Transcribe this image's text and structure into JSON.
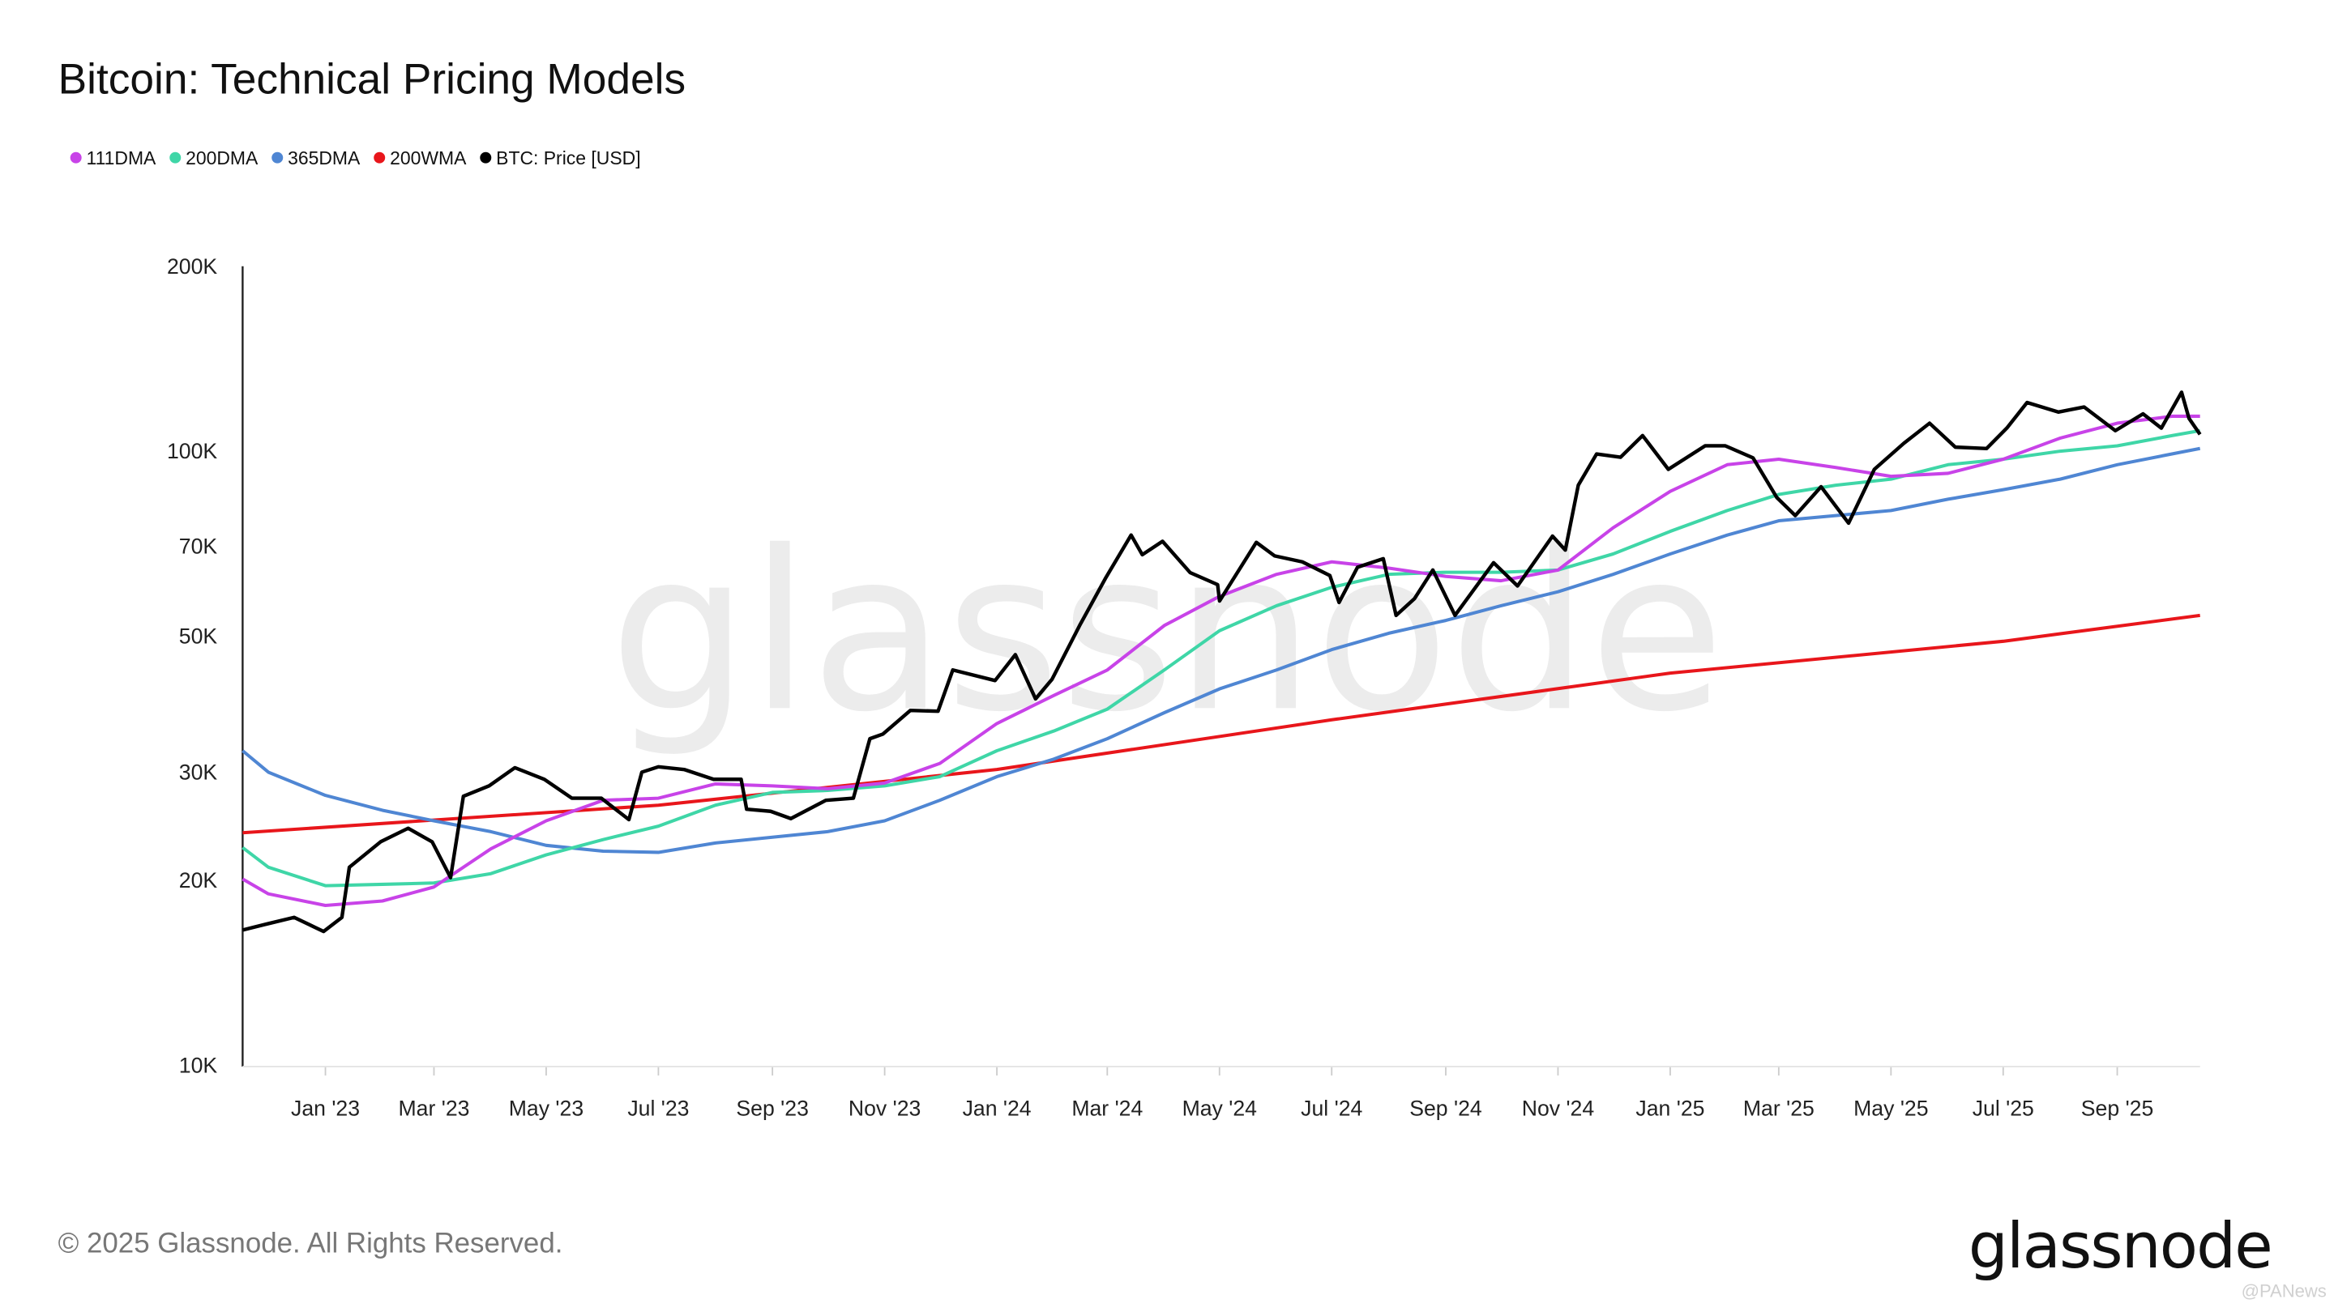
{
  "chart_data": {
    "type": "line",
    "title": "Bitcoin: Technical Pricing Models",
    "xlabel": "",
    "ylabel": "",
    "y_scale": "log",
    "ylim": [
      10000,
      200000
    ],
    "xlim": [
      "2022-11-17",
      "2025-10-16"
    ],
    "grid": false,
    "legend_placement": "top-left",
    "y_ticks": [
      {
        "value": 10000,
        "label": "10K"
      },
      {
        "value": 20000,
        "label": "20K"
      },
      {
        "value": 30000,
        "label": "30K"
      },
      {
        "value": 50000,
        "label": "50K"
      },
      {
        "value": 70000,
        "label": "70K"
      },
      {
        "value": 100000,
        "label": "100K"
      },
      {
        "value": 200000,
        "label": "200K"
      }
    ],
    "x_ticks": [
      {
        "date": "2023-01-01",
        "label": "Jan '23"
      },
      {
        "date": "2023-03-01",
        "label": "Mar '23"
      },
      {
        "date": "2023-05-01",
        "label": "May '23"
      },
      {
        "date": "2023-07-01",
        "label": "Jul '23"
      },
      {
        "date": "2023-09-01",
        "label": "Sep '23"
      },
      {
        "date": "2023-11-01",
        "label": "Nov '23"
      },
      {
        "date": "2024-01-01",
        "label": "Jan '24"
      },
      {
        "date": "2024-03-01",
        "label": "Mar '24"
      },
      {
        "date": "2024-05-01",
        "label": "May '24"
      },
      {
        "date": "2024-07-01",
        "label": "Jul '24"
      },
      {
        "date": "2024-09-01",
        "label": "Sep '24"
      },
      {
        "date": "2024-11-01",
        "label": "Nov '24"
      },
      {
        "date": "2025-01-01",
        "label": "Jan '25"
      },
      {
        "date": "2025-03-01",
        "label": "Mar '25"
      },
      {
        "date": "2025-05-01",
        "label": "May '25"
      },
      {
        "date": "2025-07-01",
        "label": "Jul '25"
      },
      {
        "date": "2025-09-01",
        "label": "Sep '25"
      }
    ],
    "ma_dates": [
      "2022-11-17",
      "2022-12-01",
      "2023-01-01",
      "2023-02-01",
      "2023-03-01",
      "2023-04-01",
      "2023-05-01",
      "2023-06-01",
      "2023-07-01",
      "2023-08-01",
      "2023-09-01",
      "2023-10-01",
      "2023-11-01",
      "2023-12-01",
      "2024-01-01",
      "2024-02-01",
      "2024-03-01",
      "2024-04-01",
      "2024-05-01",
      "2024-06-01",
      "2024-07-01",
      "2024-08-01",
      "2024-09-01",
      "2024-10-01",
      "2024-11-01",
      "2024-12-01",
      "2025-01-01",
      "2025-02-01",
      "2025-03-01",
      "2025-04-01",
      "2025-05-01",
      "2025-06-01",
      "2025-07-01",
      "2025-08-01",
      "2025-09-01",
      "2025-10-01",
      "2025-10-16"
    ],
    "series": [
      {
        "name": "200WMA",
        "color": "#e8161b",
        "x": [
          "2022-11-17",
          "2023-07-01",
          "2024-01-01",
          "2024-07-01",
          "2025-01-01",
          "2025-07-01",
          "2025-10-16"
        ],
        "values": [
          23900,
          26500,
          30300,
          36500,
          43500,
          49000,
          54000
        ]
      },
      {
        "name": "365DMA",
        "color": "#4f86d3",
        "values": [
          32500,
          30000,
          27500,
          26000,
          25000,
          24000,
          22800,
          22300,
          22200,
          23000,
          23500,
          24000,
          25000,
          27000,
          29500,
          31500,
          34000,
          37500,
          41000,
          44000,
          47500,
          50500,
          53000,
          56000,
          59000,
          63000,
          68000,
          73000,
          77000,
          78500,
          80000,
          83500,
          86500,
          90000,
          95000,
          99000,
          101000
        ]
      },
      {
        "name": "200DMA",
        "color": "#3fd6a7",
        "values": [
          22600,
          21000,
          19600,
          19700,
          19800,
          20500,
          22000,
          23300,
          24500,
          26500,
          27800,
          28000,
          28500,
          29500,
          32500,
          35000,
          38000,
          44000,
          51000,
          56000,
          60000,
          63000,
          63500,
          63500,
          64000,
          68000,
          74000,
          80000,
          85000,
          88000,
          90000,
          95000,
          97000,
          100000,
          102000,
          106000,
          108000
        ]
      },
      {
        "name": "111DMA",
        "color": "#c843e8",
        "values": [
          20100,
          19000,
          18200,
          18500,
          19500,
          22500,
          25000,
          27000,
          27200,
          28700,
          28500,
          28200,
          28800,
          31000,
          36000,
          40000,
          44000,
          52000,
          58000,
          63000,
          66000,
          64500,
          62500,
          61500,
          64000,
          75000,
          86000,
          95000,
          97000,
          94000,
          91000,
          92000,
          97000,
          105000,
          111000,
          114000,
          114000
        ]
      },
      {
        "name": "BTC: Price [USD]",
        "color": "#000000",
        "x": [
          "2022-11-17",
          "2022-12-01",
          "2022-12-15",
          "2022-12-31",
          "2023-01-10",
          "2023-01-14",
          "2023-01-31",
          "2023-02-15",
          "2023-02-28",
          "2023-03-10",
          "2023-03-17",
          "2023-03-31",
          "2023-04-14",
          "2023-04-30",
          "2023-05-15",
          "2023-05-31",
          "2023-06-15",
          "2023-06-22",
          "2023-07-01",
          "2023-07-15",
          "2023-07-31",
          "2023-08-15",
          "2023-08-18",
          "2023-08-31",
          "2023-09-11",
          "2023-09-30",
          "2023-10-15",
          "2023-10-24",
          "2023-10-31",
          "2023-11-15",
          "2023-11-30",
          "2023-12-08",
          "2023-12-31",
          "2024-01-11",
          "2024-01-22",
          "2024-01-31",
          "2024-02-15",
          "2024-02-29",
          "2024-03-14",
          "2024-03-20",
          "2024-03-31",
          "2024-04-15",
          "2024-04-30",
          "2024-05-01",
          "2024-05-21",
          "2024-05-31",
          "2024-06-15",
          "2024-06-30",
          "2024-07-05",
          "2024-07-15",
          "2024-07-29",
          "2024-08-05",
          "2024-08-15",
          "2024-08-25",
          "2024-09-06",
          "2024-09-27",
          "2024-10-10",
          "2024-10-29",
          "2024-11-05",
          "2024-11-12",
          "2024-11-22",
          "2024-12-05",
          "2024-12-17",
          "2024-12-31",
          "2025-01-20",
          "2025-01-31",
          "2025-02-15",
          "2025-02-28",
          "2025-03-10",
          "2025-03-24",
          "2025-04-08",
          "2025-04-22",
          "2025-05-08",
          "2025-05-22",
          "2025-06-05",
          "2025-06-22",
          "2025-07-03",
          "2025-07-14",
          "2025-07-31",
          "2025-08-14",
          "2025-08-31",
          "2025-09-15",
          "2025-09-25",
          "2025-10-06",
          "2025-10-10",
          "2025-10-16"
        ],
        "values": [
          16600,
          17000,
          17400,
          16500,
          17400,
          21000,
          23100,
          24300,
          23100,
          20200,
          27400,
          28500,
          30500,
          29200,
          27200,
          27200,
          25100,
          30000,
          30600,
          30300,
          29200,
          29200,
          26100,
          25900,
          25200,
          27000,
          27200,
          34000,
          34600,
          37800,
          37700,
          44000,
          42300,
          46600,
          39500,
          42500,
          52000,
          62000,
          73000,
          67800,
          71300,
          63400,
          60600,
          57000,
          71000,
          67500,
          66000,
          62700,
          56700,
          64700,
          66800,
          54000,
          57500,
          64000,
          54000,
          65800,
          60300,
          72700,
          69000,
          88000,
          98900,
          97700,
          106000,
          93400,
          102000,
          102000,
          97500,
          84000,
          78500,
          87500,
          76300,
          93400,
          103000,
          111000,
          101500,
          101000,
          109000,
          120000,
          115800,
          118000,
          108000,
          115000,
          109000,
          124700,
          113000,
          106500
        ]
      }
    ]
  },
  "footer": {
    "copyright": "© 2025 Glassnode. All Rights Reserved.",
    "logo_text": "glassnode",
    "watermark_text": "glassnode",
    "source_watermark": "@PANews"
  }
}
